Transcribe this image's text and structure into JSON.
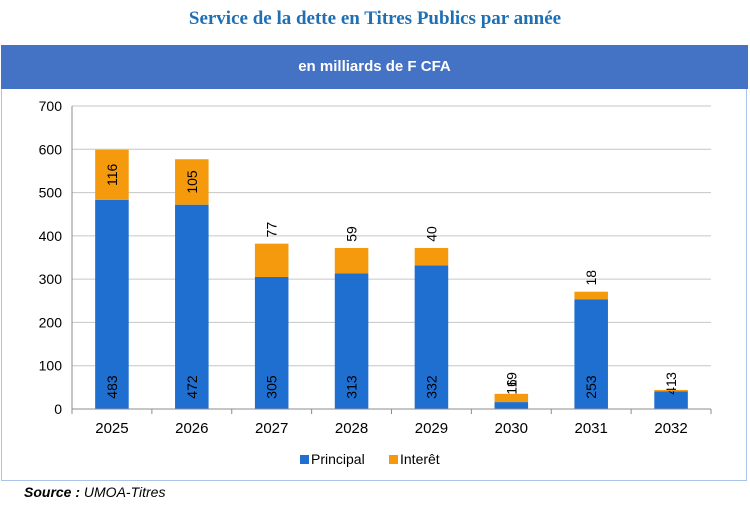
{
  "title": "Service de la dette en Titres Publics par année",
  "subtitle": "en milliards de F CFA",
  "source_label": "Source :",
  "source_value": "UMOA-Titres",
  "colors": {
    "principal": "#1f6fd1",
    "interet": "#f59a0c",
    "band": "#4472c4",
    "title": "#1f6fb5"
  },
  "chart_data": {
    "type": "bar",
    "stacked": true,
    "categories": [
      "2025",
      "2026",
      "2027",
      "2028",
      "2029",
      "2030",
      "2031",
      "2032"
    ],
    "series": [
      {
        "name": "Principal",
        "values": [
          483,
          472,
          305,
          313,
          332,
          16,
          253,
          41
        ],
        "labels": [
          "483",
          "472",
          "305",
          "313",
          "332",
          "16",
          "253",
          "41"
        ]
      },
      {
        "name": "Interêt",
        "values": [
          116,
          105,
          77,
          59,
          40,
          19,
          18,
          3
        ],
        "labels": [
          "116",
          "105",
          "77",
          "59",
          "40",
          "19",
          "18",
          "3"
        ]
      }
    ],
    "ylim": [
      0,
      700
    ],
    "yticks": [
      0,
      100,
      200,
      300,
      400,
      500,
      600,
      700
    ],
    "grid": true,
    "legend": "bottom"
  }
}
